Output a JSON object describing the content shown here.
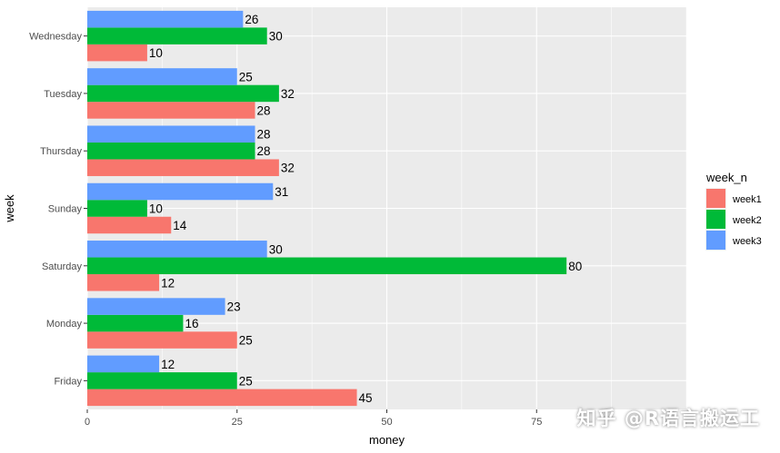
{
  "chart_data": {
    "type": "bar",
    "orientation": "horizontal",
    "categories": [
      "Wednesday",
      "Tuesday",
      "Thursday",
      "Sunday",
      "Saturday",
      "Monday",
      "Friday"
    ],
    "series": [
      {
        "name": "week1",
        "color": "#F8766D",
        "values": [
          10,
          28,
          32,
          14,
          12,
          25,
          45
        ]
      },
      {
        "name": "week2",
        "color": "#00BA38",
        "values": [
          30,
          32,
          28,
          10,
          80,
          16,
          25
        ]
      },
      {
        "name": "week3",
        "color": "#619CFF",
        "values": [
          26,
          25,
          28,
          31,
          30,
          23,
          12
        ]
      }
    ],
    "xlabel": "money",
    "ylabel": "week",
    "xlim": [
      0,
      100
    ],
    "xticks": [
      0,
      25,
      50,
      75
    ],
    "legend_title": "week_n",
    "legend_position": "right",
    "grid": true,
    "panel_background": "#EBEBEB"
  },
  "watermark": "知乎 @R语言搬运工"
}
